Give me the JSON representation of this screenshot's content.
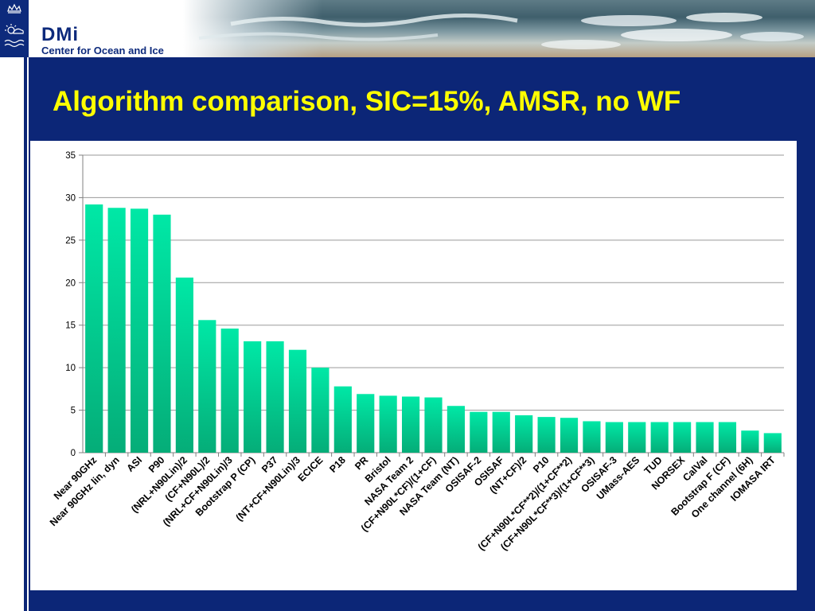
{
  "header": {
    "brand_name": "DMi",
    "brand_sub": "Center for Ocean and Ice"
  },
  "title": "Algorithm comparison, SIC=15%, AMSR, no WF",
  "colors": {
    "background": "#0c2677",
    "title": "#ffff00",
    "bar_top": "#00e8a6",
    "bar_bottom": "#05ad78",
    "grid": "#999999"
  },
  "chart_data": {
    "type": "bar",
    "title": "",
    "xlabel": "",
    "ylabel": "",
    "ylim": [
      0,
      35
    ],
    "yticks": [
      0,
      5,
      10,
      15,
      20,
      25,
      30,
      35
    ],
    "grid": true,
    "legend": "none",
    "categories": [
      "Near 90GHz",
      "Near 90GHz lin, dyn",
      "ASI",
      "P90",
      "(NRL+N90Lin)/2",
      "(CF+N90L)/2",
      "(NRL+CF+N90Lin)/3",
      "Bootstrap P (CP)",
      "P37",
      "(NT+CF+N90Lin)/3",
      "ECICE",
      "P18",
      "PR",
      "Bristol",
      "NASA Team 2",
      "(CF+N90L*CF)/(1+CF)",
      "NASA Team (NT)",
      "OSISAF-2",
      "OSISAF",
      "(NT+CF)/2",
      "P10",
      "(CF+N90L*CF**2)/(1+CF**2)",
      "(CF+N90L*CF**3)/(1+CF**3)",
      "OSISAF-3",
      "UMass-AES",
      "TUD",
      "NORSEX",
      "CalVal",
      "Bootstrap F (CF)",
      "One channel (6H)",
      "IOMASA IRT"
    ],
    "values": [
      29.2,
      28.8,
      28.7,
      28.0,
      20.6,
      15.6,
      14.6,
      13.1,
      13.1,
      12.1,
      10.0,
      7.8,
      6.9,
      6.7,
      6.6,
      6.5,
      5.5,
      4.8,
      4.8,
      4.4,
      4.2,
      4.1,
      3.7,
      3.6,
      3.6,
      3.6,
      3.6,
      3.6,
      3.6,
      2.6,
      2.3
    ]
  }
}
